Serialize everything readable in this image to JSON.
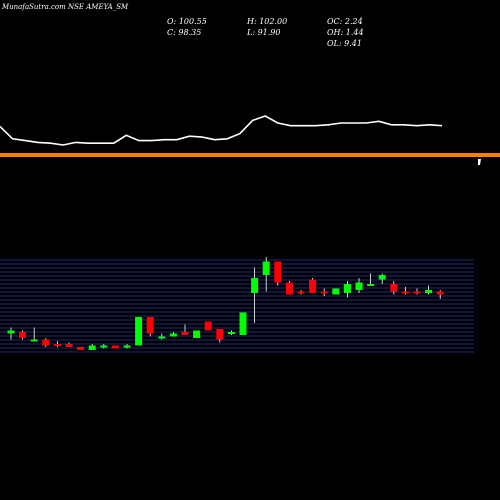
{
  "header": {
    "title": "MunafaSutra.com NSE AMEYA_SM",
    "stats": [
      {
        "label": "O:",
        "value": "100.55"
      },
      {
        "label": "C:",
        "value": "98.35"
      },
      {
        "label": "H:",
        "value": "102.00"
      },
      {
        "label": "L:",
        "value": "91.90"
      },
      {
        "label": "OC:",
        "value": "2.24"
      },
      {
        "label": "OH:",
        "value": "1.44"
      },
      {
        "label": "OL:",
        "value": "9.41"
      }
    ]
  },
  "colors": {
    "background": "#000000",
    "line": "#ffffff",
    "separator": "#ff8000",
    "up": "#00ff00",
    "down": "#ff0000",
    "grid": "#2a3a9a"
  },
  "chart_data": [
    {
      "type": "line",
      "series": [
        {
          "values": [
            12,
            26,
            28,
            30,
            31,
            33,
            30,
            31,
            31,
            31,
            22,
            28,
            28,
            27,
            27,
            23,
            24,
            27,
            26,
            20,
            5,
            0,
            8,
            11,
            11,
            11,
            10,
            8,
            8,
            8,
            6,
            10,
            10,
            11,
            10,
            11
          ]
        }
      ]
    },
    {
      "type": "candlestick",
      "candles": [
        {
          "o": 76,
          "h": 80,
          "l": 72,
          "c": 78
        },
        {
          "o": 77,
          "h": 78,
          "l": 72,
          "c": 73
        },
        {
          "o": 72,
          "h": 80,
          "l": 72,
          "c": 72
        },
        {
          "o": 72,
          "h": 73,
          "l": 67,
          "c": 68
        },
        {
          "o": 69,
          "h": 71,
          "l": 67,
          "c": 68
        },
        {
          "o": 69,
          "h": 70,
          "l": 67,
          "c": 67
        },
        {
          "o": 67,
          "h": 67,
          "l": 65,
          "c": 65
        },
        {
          "o": 65,
          "h": 69,
          "l": 65,
          "c": 68
        },
        {
          "o": 67,
          "h": 69,
          "l": 66,
          "c": 68
        },
        {
          "o": 68,
          "h": 68,
          "l": 66,
          "c": 66
        },
        {
          "o": 67,
          "h": 69,
          "l": 66,
          "c": 68
        },
        {
          "o": 68,
          "h": 87,
          "l": 68,
          "c": 87
        },
        {
          "o": 87,
          "h": 87,
          "l": 74,
          "c": 76
        },
        {
          "o": 73,
          "h": 76,
          "l": 72,
          "c": 74
        },
        {
          "o": 74,
          "h": 77,
          "l": 74,
          "c": 76
        },
        {
          "o": 77,
          "h": 82,
          "l": 75,
          "c": 75
        },
        {
          "o": 73,
          "h": 78,
          "l": 73,
          "c": 78
        },
        {
          "o": 84,
          "h": 84,
          "l": 78,
          "c": 78
        },
        {
          "o": 79,
          "h": 79,
          "l": 70,
          "c": 72
        },
        {
          "o": 76,
          "h": 78,
          "l": 75,
          "c": 77
        },
        {
          "o": 75,
          "h": 90,
          "l": 75,
          "c": 90
        },
        {
          "o": 103,
          "h": 120,
          "l": 83,
          "c": 113
        },
        {
          "o": 115,
          "h": 127,
          "l": 104,
          "c": 124
        },
        {
          "o": 124,
          "h": 124,
          "l": 108,
          "c": 110
        },
        {
          "o": 110,
          "h": 111,
          "l": 102,
          "c": 102
        },
        {
          "o": 104,
          "h": 105,
          "l": 102,
          "c": 103
        },
        {
          "o": 112,
          "h": 113,
          "l": 103,
          "c": 103
        },
        {
          "o": 104,
          "h": 106,
          "l": 101,
          "c": 103
        },
        {
          "o": 102,
          "h": 106,
          "l": 102,
          "c": 106
        },
        {
          "o": 103,
          "h": 111,
          "l": 100,
          "c": 109
        },
        {
          "o": 105,
          "h": 113,
          "l": 103,
          "c": 110
        },
        {
          "o": 109,
          "h": 116,
          "l": 108,
          "c": 109
        },
        {
          "o": 112,
          "h": 116,
          "l": 109,
          "c": 115
        },
        {
          "o": 109,
          "h": 111,
          "l": 102,
          "c": 104
        },
        {
          "o": 104,
          "h": 107,
          "l": 102,
          "c": 103
        },
        {
          "o": 104,
          "h": 106,
          "l": 102,
          "c": 103
        },
        {
          "o": 103,
          "h": 108,
          "l": 102,
          "c": 105
        },
        {
          "o": 104,
          "h": 105,
          "l": 99,
          "c": 102
        }
      ]
    }
  ]
}
